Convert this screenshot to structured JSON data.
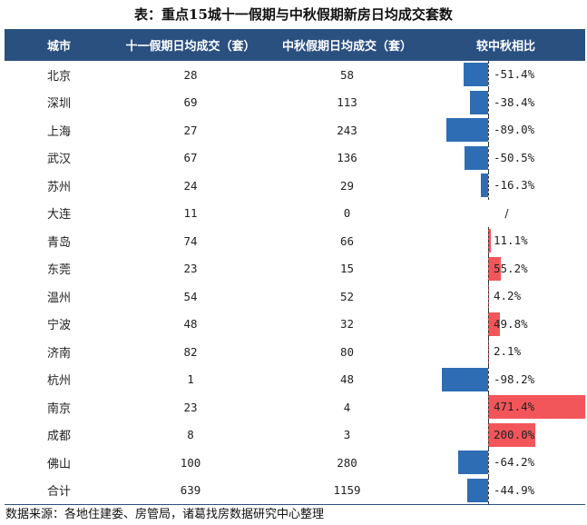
{
  "title": "表：重点15城十一假期与中秋假期新房日均成交套数",
  "headers": [
    "城市",
    "十一假期日均成交（套）",
    "中秋假期日均成交（套）",
    "较中秋相比"
  ],
  "rows": [
    {
      "city": "北京",
      "national": "28",
      "midautumn": "58",
      "change": "-51.4%",
      "pct": -51.4
    },
    {
      "city": "深圳",
      "national": "69",
      "midautumn": "113",
      "change": "-38.4%",
      "pct": -38.4
    },
    {
      "city": "上海",
      "national": "27",
      "midautumn": "243",
      "change": "-89.0%",
      "pct": -89.0
    },
    {
      "city": "武汉",
      "national": "67",
      "midautumn": "136",
      "change": "-50.5%",
      "pct": -50.5
    },
    {
      "city": "苏州",
      "national": "24",
      "midautumn": "29",
      "change": "-16.3%",
      "pct": -16.3
    },
    {
      "city": "大连",
      "national": "11",
      "midautumn": "0",
      "change": "/",
      "pct": null
    },
    {
      "city": "青岛",
      "national": "74",
      "midautumn": "66",
      "change": "11.1%",
      "pct": 11.1
    },
    {
      "city": "东莞",
      "national": "23",
      "midautumn": "15",
      "change": "55.2%",
      "pct": 55.2
    },
    {
      "city": "温州",
      "national": "54",
      "midautumn": "52",
      "change": "4.2%",
      "pct": 4.2
    },
    {
      "city": "宁波",
      "national": "48",
      "midautumn": "32",
      "change": "49.8%",
      "pct": 49.8
    },
    {
      "city": "济南",
      "national": "82",
      "midautumn": "80",
      "change": "2.1%",
      "pct": 2.1
    },
    {
      "city": "杭州",
      "national": "1",
      "midautumn": "48",
      "change": "-98.2%",
      "pct": -98.2
    },
    {
      "city": "南京",
      "national": "23",
      "midautumn": "4",
      "change": "471.4%",
      "pct": 471.4
    },
    {
      "city": "成都",
      "national": "8",
      "midautumn": "3",
      "change": "200.0%",
      "pct": 200.0
    },
    {
      "city": "佛山",
      "national": "100",
      "midautumn": "280",
      "change": "-64.2%",
      "pct": -64.2
    },
    {
      "city": "合计",
      "national": "639",
      "midautumn": "1159",
      "change": "-44.9%",
      "pct": -44.9
    }
  ],
  "colors": {
    "header_bg": "#2a5080",
    "negative": "#2e6db4",
    "positive": "#f2565a"
  },
  "source": "数据来源：各地住建委、房管局，诸葛找房数据研究中心整理"
}
